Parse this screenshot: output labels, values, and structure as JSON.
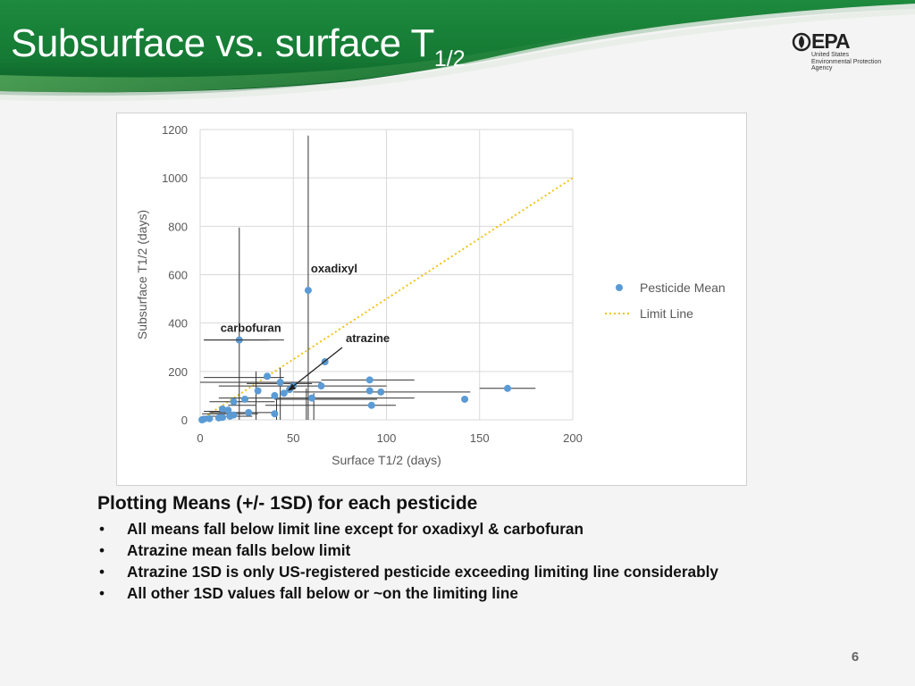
{
  "slide": {
    "title": "Subsurface vs. surface T",
    "title_subscript": "1/2",
    "page_number": "6",
    "logo": {
      "wordmark": "EPA",
      "subtitle": "United States\nEnvironmental Protection\nAgency"
    }
  },
  "notes": {
    "heading": "Plotting Means (+/- 1SD) for each pesticide",
    "bullets": [
      "All means fall below limit line except for oxadixyl & carbofuran",
      "Atrazine mean falls below limit",
      "Atrazine 1SD is only US-registered pesticide exceeding limiting line considerably",
      "All other 1SD values fall below or ~on the limiting line"
    ],
    "bullet_glyph": "•"
  },
  "colors": {
    "header_green": "#1f8a3f",
    "header_dark": "#0c5024",
    "point": "#5b9bd5",
    "limit_line": "#f2c314",
    "error_bar": "#333333",
    "gridline": "#d9d9d9"
  },
  "chart_data": {
    "type": "scatter",
    "xlabel": "Surface T1/2 (days)",
    "ylabel": "Subsurface T1/2 (days)",
    "xlim": [
      0,
      200
    ],
    "ylim": [
      0,
      1200
    ],
    "xticks": [
      0,
      50,
      100,
      150,
      200
    ],
    "yticks": [
      0,
      200,
      400,
      600,
      800,
      1000,
      1200
    ],
    "grid": true,
    "legend_position": "right",
    "series": [
      {
        "name": "Pesticide Mean",
        "marker": "circle",
        "points": [
          {
            "x": 58,
            "y": 535,
            "xerr": [
              0,
              0
            ],
            "yerr": [
              0,
              1175
            ],
            "label": "oxadixyl"
          },
          {
            "x": 21,
            "y": 330,
            "xerr": [
              2,
              37
            ],
            "yerr": [
              0,
              795
            ],
            "label": "carbofuran"
          },
          {
            "x": 43,
            "y": 155,
            "xerr": [
              0,
              65
            ],
            "yerr": [
              0,
              215
            ]
          },
          {
            "x": 67,
            "y": 240
          },
          {
            "x": 36,
            "y": 180
          },
          {
            "x": 91,
            "y": 165,
            "xerr": [
              65,
              115
            ]
          },
          {
            "x": 165,
            "y": 130,
            "xerr": [
              150,
              180
            ]
          },
          {
            "x": 142,
            "y": 85
          },
          {
            "x": 50,
            "y": 140,
            "xerr": [
              10,
              100
            ]
          },
          {
            "x": 65,
            "y": 140
          },
          {
            "x": 97,
            "y": 115,
            "xerr": [
              50,
              145
            ]
          },
          {
            "x": 91,
            "y": 120
          },
          {
            "x": 48,
            "y": 125
          },
          {
            "x": 31,
            "y": 120
          },
          {
            "x": 45,
            "y": 110
          },
          {
            "x": 40,
            "y": 100
          },
          {
            "x": 60,
            "y": 90,
            "xerr": [
              10,
              115
            ]
          },
          {
            "x": 24,
            "y": 85
          },
          {
            "x": 18,
            "y": 75,
            "xerr": [
              5,
              40
            ]
          },
          {
            "x": 92,
            "y": 60,
            "xerr": [
              35,
              105
            ]
          },
          {
            "x": 12,
            "y": 45
          },
          {
            "x": 15,
            "y": 40
          },
          {
            "x": 26,
            "y": 30,
            "xerr": [
              10,
              40
            ]
          },
          {
            "x": 40,
            "y": 25
          },
          {
            "x": 18,
            "y": 20
          },
          {
            "x": 12,
            "y": 10
          },
          {
            "x": 16,
            "y": 15
          },
          {
            "x": 10,
            "y": 8
          },
          {
            "x": 5,
            "y": 5
          },
          {
            "x": 2,
            "y": 3
          },
          {
            "x": 1,
            "y": 0
          }
        ]
      },
      {
        "name": "Limit Line",
        "type": "line",
        "style": "dotted",
        "x": [
          0,
          200
        ],
        "y": [
          0,
          1000
        ]
      }
    ],
    "extra_error_bars": [
      {
        "x": [
          2,
          45
        ],
        "y": 175
      },
      {
        "x": [
          1,
          31
        ],
        "y": 25
      },
      {
        "x": [
          5,
          20
        ],
        "y": 30
      },
      {
        "x": [
          15,
          30
        ],
        "y": 60
      },
      {
        "x": [
          40,
          95
        ],
        "y": 85
      },
      {
        "x": [
          25,
          60
        ],
        "y": 150
      },
      {
        "x": [
          3,
          28
        ],
        "y": 15
      },
      {
        "x": [
          2,
          12
        ],
        "y": 35
      },
      {
        "vx": 41,
        "y": [
          0,
          90
        ]
      },
      {
        "vx": 61,
        "y": [
          0,
          110
        ]
      },
      {
        "vx": 30,
        "y": [
          0,
          200
        ]
      },
      {
        "vx": 57,
        "y": [
          0,
          130
        ]
      }
    ],
    "annotations": [
      {
        "text": "oxadixyl",
        "at": "oxadixyl-point"
      },
      {
        "text": "carbofuran",
        "at": "carbofuran-point"
      },
      {
        "text": "atrazine",
        "arrow_to": {
          "x": 47,
          "y": 120
        }
      }
    ]
  }
}
